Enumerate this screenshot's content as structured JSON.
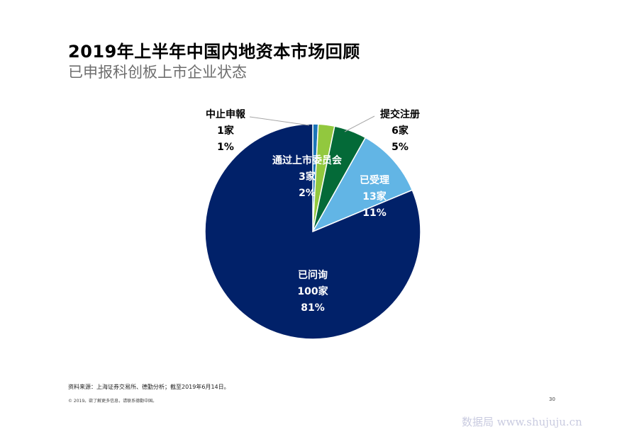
{
  "header": {
    "title": "2019年上半年中国内地资本市场回顾",
    "subtitle": "已申报科创板上市企业状态"
  },
  "chart_data": {
    "type": "pie",
    "title": "",
    "slices": [
      {
        "name": "中止申報",
        "count": 1,
        "count_label": "1家",
        "percent_label": "1%",
        "color": "#1a74b8"
      },
      {
        "name": "通过上市委员会",
        "count": 3,
        "count_label": "3家",
        "percent_label": "2%",
        "color": "#92c83e"
      },
      {
        "name": "提交注册",
        "count": 6,
        "count_label": "6家",
        "percent_label": "5%",
        "color": "#046a38"
      },
      {
        "name": "已受理",
        "count": 13,
        "count_label": "13家",
        "percent_label": "11%",
        "color": "#62b5e5"
      },
      {
        "name": "已问询",
        "count": 100,
        "count_label": "100家",
        "percent_label": "81%",
        "color": "#012169"
      }
    ]
  },
  "footer": {
    "source": "资料来源：上海证券交易所、德勤分析；截至2019年6月14日。",
    "copyright": "© 2019。欲了解更多信息，请联系德勤中国。",
    "page_number": "30"
  },
  "watermark": "数据局 www.shujuju.cn"
}
